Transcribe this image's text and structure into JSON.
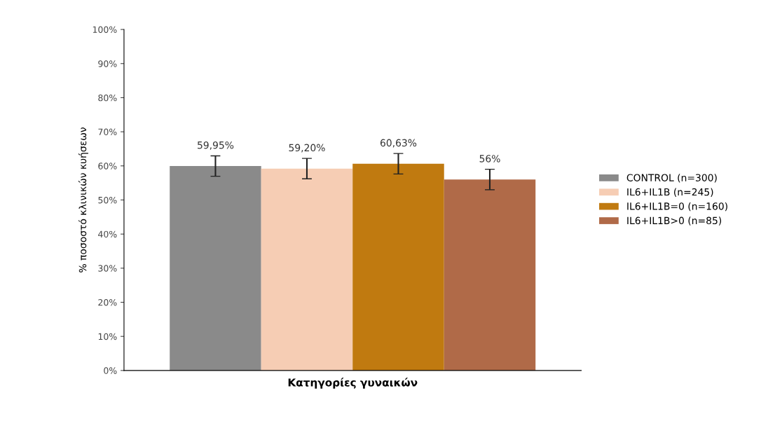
{
  "chart_data": {
    "type": "bar",
    "xlabel": "Κατηγορίες γυναικών",
    "ylabel": "% ποσοστό κλινικών κυήσεων",
    "categories": [
      null
    ],
    "series": [
      {
        "name": "CONTROL (n=300)",
        "color": "#8a8a8a",
        "values": [
          59.95
        ],
        "errors": [
          3
        ],
        "value_labels": [
          "59,95%"
        ]
      },
      {
        "name": "IL6+IL1B (n=245)",
        "color": "#f6cdb4",
        "values": [
          59.2
        ],
        "errors": [
          3
        ],
        "value_labels": [
          "59,20%"
        ]
      },
      {
        "name": "IL6+IL1B=0 (n=160)",
        "color": "#c07a10",
        "values": [
          60.63
        ],
        "errors": [
          3
        ],
        "value_labels": [
          "60,63%"
        ]
      },
      {
        "name": "IL6+IL1B>0 (n=85)",
        "color": "#b06a48",
        "values": [
          56
        ],
        "errors": [
          3
        ],
        "value_labels": [
          "56%"
        ]
      }
    ],
    "ylim": [
      0,
      100
    ],
    "yticks": [
      {
        "value": 0,
        "label": "0%"
      },
      {
        "value": 10,
        "label": "10%"
      },
      {
        "value": 20,
        "label": "20%"
      },
      {
        "value": 30,
        "label": "30%"
      },
      {
        "value": 40,
        "label": "40%"
      },
      {
        "value": 50,
        "label": "50%"
      },
      {
        "value": 60,
        "label": "60%"
      },
      {
        "value": 70,
        "label": "70%"
      },
      {
        "value": 80,
        "label": "80%"
      },
      {
        "value": 90,
        "label": "90%"
      },
      {
        "value": 100,
        "label": "100%"
      }
    ],
    "grid": false,
    "legend": "right"
  }
}
